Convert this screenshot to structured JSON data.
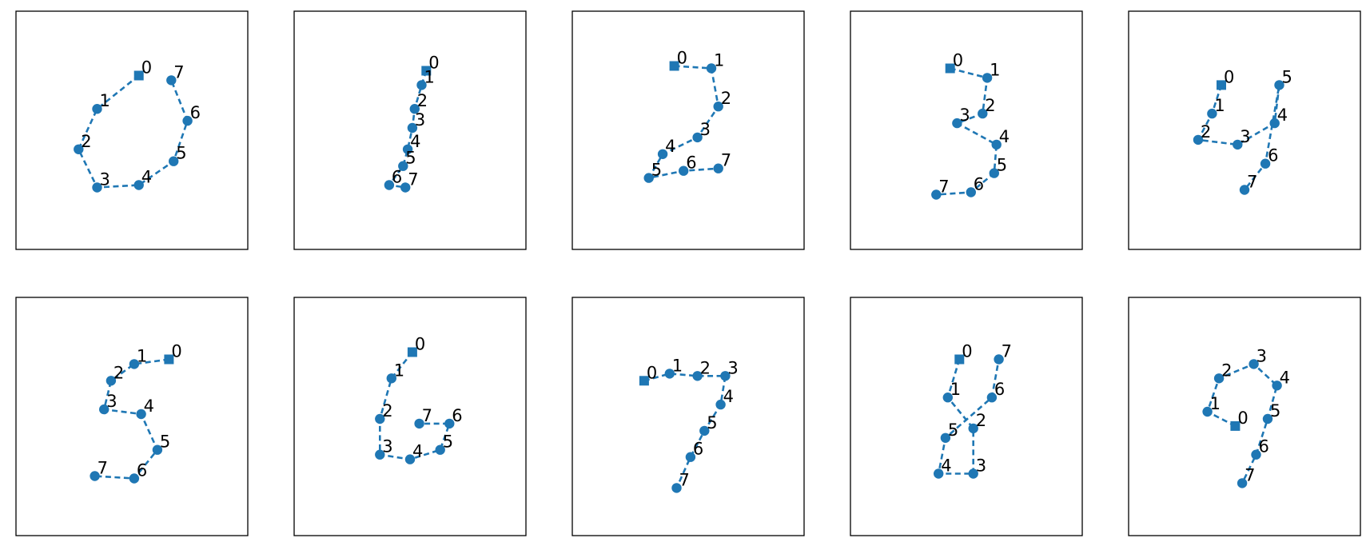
{
  "chart_data": [
    {
      "type": "scatter",
      "point_labels": [
        "0",
        "1",
        "2",
        "3",
        "4",
        "5",
        "6",
        "7"
      ],
      "x": [
        0.53,
        0.35,
        0.27,
        0.35,
        0.53,
        0.68,
        0.74,
        0.67
      ],
      "y": [
        0.27,
        0.41,
        0.58,
        0.74,
        0.73,
        0.63,
        0.46,
        0.29
      ]
    },
    {
      "type": "scatter",
      "point_labels": [
        "0",
        "1",
        "2",
        "3",
        "4",
        "5",
        "6",
        "7"
      ],
      "x": [
        0.57,
        0.55,
        0.52,
        0.51,
        0.49,
        0.47,
        0.41,
        0.48
      ],
      "y": [
        0.25,
        0.31,
        0.41,
        0.49,
        0.58,
        0.65,
        0.73,
        0.74
      ]
    },
    {
      "type": "scatter",
      "point_labels": [
        "0",
        "1",
        "2",
        "3",
        "4",
        "5",
        "6",
        "7"
      ],
      "x": [
        0.44,
        0.6,
        0.63,
        0.54,
        0.39,
        0.33,
        0.48,
        0.63
      ],
      "y": [
        0.23,
        0.24,
        0.4,
        0.53,
        0.6,
        0.7,
        0.67,
        0.66
      ]
    },
    {
      "type": "scatter",
      "point_labels": [
        "0",
        "1",
        "2",
        "3",
        "4",
        "5",
        "6",
        "7"
      ],
      "x": [
        0.43,
        0.59,
        0.57,
        0.46,
        0.63,
        0.62,
        0.52,
        0.37
      ],
      "y": [
        0.24,
        0.28,
        0.43,
        0.47,
        0.56,
        0.68,
        0.76,
        0.77
      ]
    },
    {
      "type": "scatter",
      "point_labels": [
        "0",
        "1",
        "2",
        "3",
        "4",
        "5",
        "6",
        "7"
      ],
      "x": [
        0.4,
        0.36,
        0.3,
        0.47,
        0.63,
        0.65,
        0.59,
        0.5
      ],
      "y": [
        0.31,
        0.43,
        0.54,
        0.56,
        0.47,
        0.31,
        0.64,
        0.75
      ]
    },
    {
      "type": "scatter",
      "point_labels": [
        "0",
        "1",
        "2",
        "3",
        "4",
        "5",
        "6",
        "7"
      ],
      "x": [
        0.66,
        0.51,
        0.41,
        0.38,
        0.54,
        0.61,
        0.51,
        0.34
      ],
      "y": [
        0.26,
        0.28,
        0.35,
        0.47,
        0.49,
        0.64,
        0.76,
        0.75
      ]
    },
    {
      "type": "scatter",
      "point_labels": [
        "0",
        "1",
        "2",
        "3",
        "4",
        "5",
        "6",
        "7"
      ],
      "x": [
        0.51,
        0.42,
        0.37,
        0.37,
        0.5,
        0.63,
        0.67,
        0.54
      ],
      "y": [
        0.23,
        0.34,
        0.51,
        0.66,
        0.68,
        0.64,
        0.53,
        0.53
      ]
    },
    {
      "type": "scatter",
      "point_labels": [
        "0",
        "1",
        "2",
        "3",
        "4",
        "5",
        "6",
        "7"
      ],
      "x": [
        0.31,
        0.42,
        0.54,
        0.66,
        0.64,
        0.57,
        0.51,
        0.45
      ],
      "y": [
        0.35,
        0.32,
        0.33,
        0.33,
        0.45,
        0.56,
        0.67,
        0.8
      ]
    },
    {
      "type": "scatter",
      "point_labels": [
        "0",
        "1",
        "2",
        "3",
        "4",
        "5",
        "6",
        "7"
      ],
      "x": [
        0.47,
        0.42,
        0.53,
        0.53,
        0.38,
        0.41,
        0.61,
        0.64
      ],
      "y": [
        0.26,
        0.42,
        0.55,
        0.74,
        0.74,
        0.59,
        0.42,
        0.26
      ]
    },
    {
      "type": "scatter",
      "point_labels": [
        "0",
        "1",
        "2",
        "3",
        "4",
        "5",
        "6",
        "7"
      ],
      "x": [
        0.46,
        0.34,
        0.39,
        0.54,
        0.64,
        0.6,
        0.55,
        0.49
      ],
      "y": [
        0.54,
        0.48,
        0.34,
        0.28,
        0.37,
        0.51,
        0.66,
        0.78
      ]
    }
  ],
  "colors": {
    "series": "#1f77b4",
    "frame": "#000000",
    "label": "#000000"
  },
  "markers": {
    "first_point": "square",
    "other_points": "circle"
  },
  "line_style": "dashed",
  "axes_ticks": "none"
}
